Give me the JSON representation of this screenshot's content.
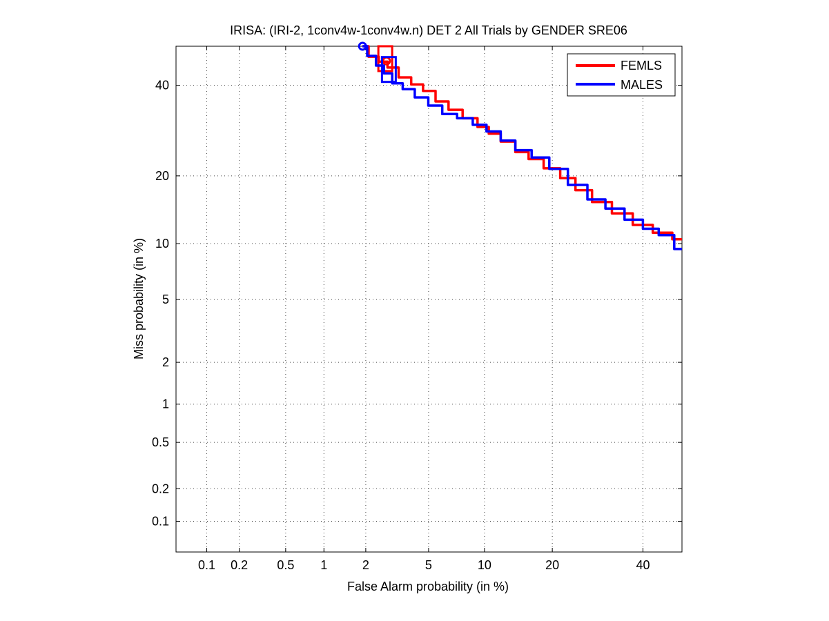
{
  "chart_data": {
    "type": "line",
    "title": "IRISA: (IRI-2, 1conv4w-1conv4w.n) DET 2 All Trials by GENDER SRE06",
    "xlabel": "False Alarm probability (in %)",
    "ylabel": "Miss probability (in %)",
    "x_scale": "probit",
    "y_scale": "probit",
    "xlim": [
      0.05,
      50
    ],
    "ylim": [
      0.05,
      50
    ],
    "grid": true,
    "x_ticks": [
      {
        "value": 0.1,
        "label": "0.1"
      },
      {
        "value": 0.2,
        "label": "0.2"
      },
      {
        "value": 0.5,
        "label": "0.5"
      },
      {
        "value": 1,
        "label": "1"
      },
      {
        "value": 2,
        "label": "2"
      },
      {
        "value": 5,
        "label": "5"
      },
      {
        "value": 10,
        "label": "10"
      },
      {
        "value": 20,
        "label": "20"
      },
      {
        "value": 40,
        "label": "40"
      }
    ],
    "y_ticks": [
      {
        "value": 0.1,
        "label": "0.1"
      },
      {
        "value": 0.2,
        "label": "0.2"
      },
      {
        "value": 0.5,
        "label": "0.5"
      },
      {
        "value": 1,
        "label": "1"
      },
      {
        "value": 2,
        "label": "2"
      },
      {
        "value": 5,
        "label": "5"
      },
      {
        "value": 10,
        "label": "10"
      },
      {
        "value": 20,
        "label": "20"
      },
      {
        "value": 40,
        "label": "40"
      }
    ],
    "legend": {
      "location": "top-right"
    },
    "series": [
      {
        "name": "FEMLS",
        "color": "#ff0000",
        "x": [
          1.9,
          2.3,
          2.6,
          3.0,
          3.6,
          4.3,
          5.0,
          6.0,
          7.0,
          8.5,
          10.0,
          11.0,
          13.0,
          15.0,
          17.0,
          20.0,
          23.0,
          26.0,
          30.0,
          35.0,
          40.0,
          45.0,
          50.0
        ],
        "y": [
          50.0,
          47.3,
          46.0,
          44.5,
          42.0,
          40.2,
          38.6,
          36.0,
          34.0,
          32.0,
          30.0,
          28.5,
          26.8,
          24.6,
          23.2,
          21.4,
          19.6,
          17.5,
          15.6,
          13.9,
          12.3,
          11.3,
          10.5
        ],
        "dcf_box": {
          "x": 2.7,
          "y": 47.2
        },
        "actual_point": {
          "x": 2.75,
          "y": 46.2
        }
      },
      {
        "name": "MALES",
        "color": "#0000ff",
        "x": [
          1.9,
          2.2,
          2.5,
          2.8,
          3.2,
          3.8,
          4.5,
          5.5,
          6.5,
          8.0,
          9.5,
          11.0,
          13.0,
          15.0,
          18.0,
          21.0,
          25.0,
          29.0,
          33.0,
          38.0,
          42.0,
          46.0,
          50.0
        ],
        "y": [
          50.0,
          47.5,
          45.0,
          43.0,
          40.5,
          39.0,
          37.0,
          35.0,
          33.0,
          32.0,
          30.5,
          29.0,
          27.0,
          25.0,
          23.5,
          21.3,
          18.4,
          16.0,
          14.6,
          13.0,
          11.8,
          11.0,
          9.4
        ],
        "dcf_box": {
          "x": 2.85,
          "y": 44.0
        },
        "actual_point": {
          "x": 1.9,
          "y": 50.0
        }
      }
    ]
  }
}
